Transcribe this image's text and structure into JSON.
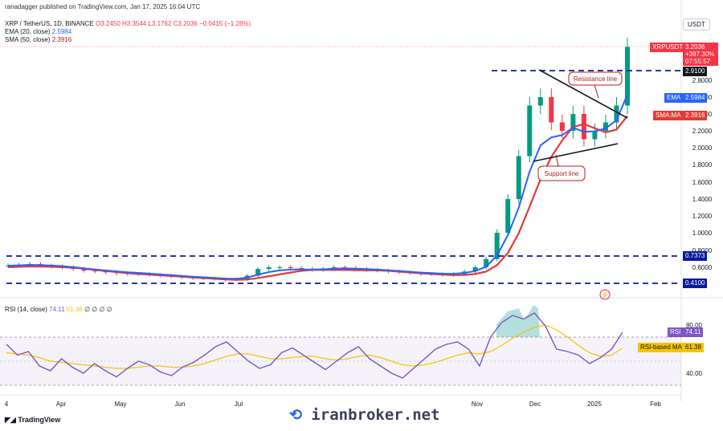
{
  "header": {
    "published": "ranadagger published on TradingView.com, Jan 17, 2025 16:04 UTC",
    "symbol": "XRP / TetherUS, 1D, BINANCE",
    "ohlc": "O3.2450  H3.3544  L3.1762  C3.2036  −0.0415 (−1.28%)",
    "ema_label": "EMA (20, close)",
    "ema_value": "2.5984",
    "sma_label": "SMA (50, close)",
    "sma_value": "2.3916",
    "rsi_label": "RSI (14, close)",
    "rsi_value": "74.11",
    "rsi_ma_value": "61.38",
    "rsi_extra": "∅ ∅ ∅ ∅"
  },
  "axis_currency": "USDT",
  "price_badges": {
    "symbol": "XRPUSDT",
    "price": "3.2036",
    "change": "+397.30%",
    "timer": "07:55:57",
    "resistance_level": "2.9100",
    "ema_label": "EMA",
    "ema": "2.5984",
    "sma_label": "SMA:MA",
    "sma": "2.3916",
    "upper_level": "0.7373",
    "lower_level": "0.4100"
  },
  "rsi_badges": {
    "rsi_label": "RSI",
    "rsi": "74.11",
    "rsi_ma_label": "RSI-based MA",
    "rsi_ma": "61.38"
  },
  "annotations": {
    "resistance": "Resistance line",
    "support": "Support line"
  },
  "footer": {
    "brand": "TradingView",
    "watermark": "iranbroker.net"
  },
  "colors": {
    "candle_up": "#089981",
    "candle_down": "#f23645",
    "ema": "#2962ff",
    "sma": "#e53935",
    "rsi": "#7e57c2",
    "rsi_ma": "#f5c400",
    "level": "#0b1a9c",
    "annotation": "#b71c1c"
  },
  "chart_data": [
    {
      "type": "candlestick",
      "title": "XRP / TetherUS, 1D, BINANCE",
      "x_ticks": [
        "4",
        "Apr",
        "May",
        "Jun",
        "Jul",
        "Nov",
        "Dec",
        "2025",
        "Feb"
      ],
      "y_ticks": [
        0.6,
        0.8,
        1.0,
        1.2,
        1.4,
        1.6,
        1.8,
        2.0,
        2.2,
        2.4,
        2.6,
        2.8
      ],
      "ylim": [
        0.38,
        3.45
      ],
      "series_weekly_close": [
        0.62,
        0.63,
        0.64,
        0.62,
        0.61,
        0.6,
        0.58,
        0.56,
        0.55,
        0.54,
        0.53,
        0.52,
        0.52,
        0.51,
        0.5,
        0.49,
        0.48,
        0.47,
        0.47,
        0.46,
        0.45,
        0.46,
        0.5,
        0.58,
        0.6,
        0.6,
        0.59,
        0.58,
        0.57,
        0.58,
        0.6,
        0.59,
        0.58,
        0.57,
        0.56,
        0.55,
        0.54,
        0.53,
        0.52,
        0.52,
        0.51,
        0.52,
        0.55,
        0.6,
        0.7,
        1.0,
        1.4,
        1.9,
        2.5,
        2.6,
        2.3,
        2.2,
        2.4,
        2.1,
        2.2,
        2.3,
        2.5,
        3.2
      ],
      "ema_20_last": 2.5984,
      "sma_50_last": 2.3916,
      "last_close": 3.2036,
      "horizontal_levels": [
        2.91,
        0.7373,
        0.41
      ],
      "trendlines": [
        "Resistance line",
        "Support line"
      ]
    },
    {
      "type": "line",
      "title": "RSI (14, close)",
      "y_ticks": [
        40.0,
        80.0
      ],
      "ylim": [
        25,
        100
      ],
      "series": [
        {
          "name": "RSI",
          "values": [
            64,
            55,
            58,
            46,
            42,
            52,
            45,
            40,
            48,
            42,
            37,
            44,
            50,
            47,
            41,
            38,
            45,
            49,
            55,
            62,
            66,
            58,
            50,
            44,
            47,
            57,
            61,
            55,
            49,
            43,
            50,
            57,
            62,
            52,
            46,
            40,
            36,
            44,
            52,
            60,
            64,
            66,
            60,
            46,
            70,
            82,
            88,
            85,
            90,
            79,
            60,
            58,
            55,
            48,
            53,
            60,
            74
          ]
        },
        {
          "name": "RSI-based MA",
          "values": [
            57,
            56,
            55,
            53,
            50,
            49,
            48,
            47,
            46,
            45,
            44,
            44,
            45,
            46,
            46,
            45,
            45,
            46,
            48,
            51,
            54,
            56,
            56,
            54,
            52,
            52,
            53,
            54,
            54,
            52,
            51,
            52,
            54,
            55,
            53,
            50,
            47,
            46,
            47,
            49,
            52,
            55,
            57,
            56,
            58,
            63,
            69,
            74,
            78,
            80,
            76,
            70,
            63,
            57,
            54,
            55,
            61
          ]
        }
      ],
      "levels": [
        70,
        30
      ]
    }
  ]
}
